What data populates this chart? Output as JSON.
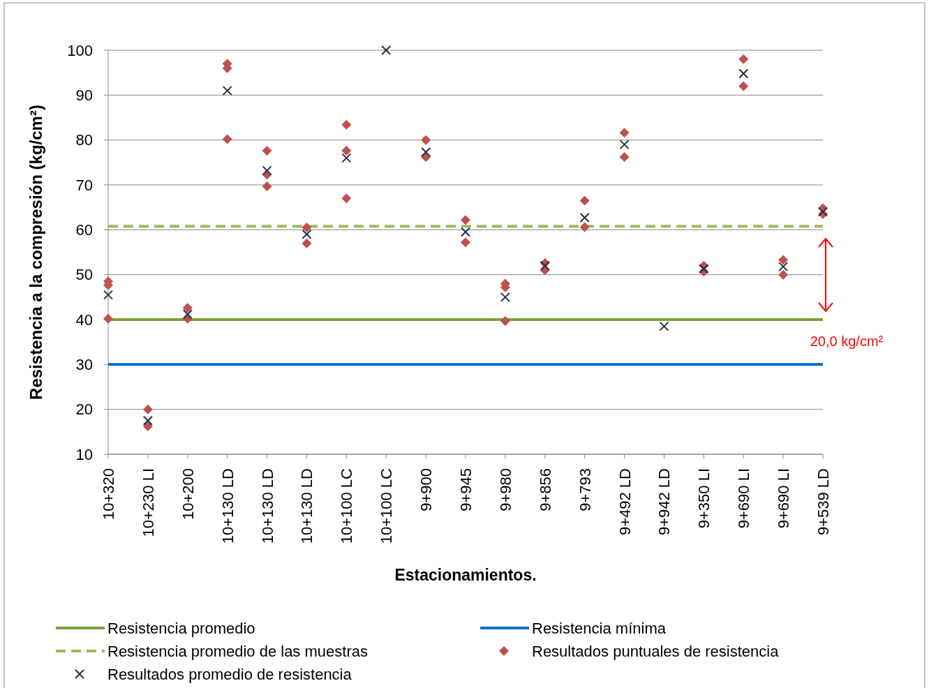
{
  "chart_data": {
    "type": "scatter",
    "xlabel": "Estacionamientos.",
    "ylabel": "Resistencia a la compresión (kg/cm²)",
    "categories": [
      "10+320",
      "10+230 LI",
      "10+200",
      "10+130 LD",
      "10+130 LD",
      "10+130 LD",
      "10+100 LC",
      "10+100 LC",
      "9+900",
      "9+945",
      "9+980",
      "9+856",
      "9+793",
      "9+492 LD",
      "9+942 LD",
      "9+350 LI",
      "9+690 LI",
      "9+690 LI",
      "9+539 LD"
    ],
    "ylim": [
      10,
      100
    ],
    "yticks": [
      10,
      20,
      30,
      40,
      50,
      60,
      70,
      80,
      90,
      100
    ],
    "grid": "y",
    "legend": "bottom",
    "series": [
      {
        "name": "Resultados puntuales de resistencia",
        "color": "#c0504d",
        "marker": "diamond",
        "values": [
          48.5,
          20,
          42.6,
          97,
          77.6,
          60.5,
          83.4,
          null,
          80,
          62.2,
          48,
          52.6,
          66.5,
          81.6,
          null,
          52,
          98,
          53.3,
          64.8
        ]
      },
      {
        "color": "#c0504d",
        "marker": "diamond",
        "values": [
          47.7,
          16.2,
          40.2,
          96,
          72.3,
          57,
          77.6,
          null,
          76.2,
          57.2,
          47.2,
          51,
          60.6,
          76.2,
          null,
          50.7,
          92,
          50,
          63.5
        ]
      },
      {
        "color": "#c0504d",
        "marker": "diamond",
        "values": [
          40.2,
          null,
          null,
          80.2,
          69.7,
          null,
          67,
          null,
          null,
          null,
          39.7,
          null,
          null,
          null,
          null,
          null,
          null,
          null,
          null
        ]
      },
      {
        "name": "Resultados promedio de resistencia",
        "color": "#1f2f45",
        "marker": "cross",
        "values": [
          45.5,
          17.5,
          41.2,
          91,
          73.2,
          59,
          76,
          100,
          77.3,
          59.5,
          45,
          52,
          62.7,
          79,
          38.5,
          51.3,
          94.8,
          51.8,
          64
        ]
      }
    ],
    "ref_lines": [
      {
        "axis": "y",
        "value": 40,
        "label": "Resistencia promedio",
        "color": "#77a03c",
        "line_style": "solid"
      },
      {
        "axis": "y",
        "value": 30,
        "label": "Resistencia mínima",
        "color": "#0070c0",
        "line_style": "solid"
      },
      {
        "axis": "y",
        "value": 60.8,
        "label": "Resistencia promedio de las muestras",
        "color": "#9bbb59",
        "line_style": "dashed"
      }
    ],
    "annotations": [
      "20,0 kg/cm²"
    ]
  }
}
